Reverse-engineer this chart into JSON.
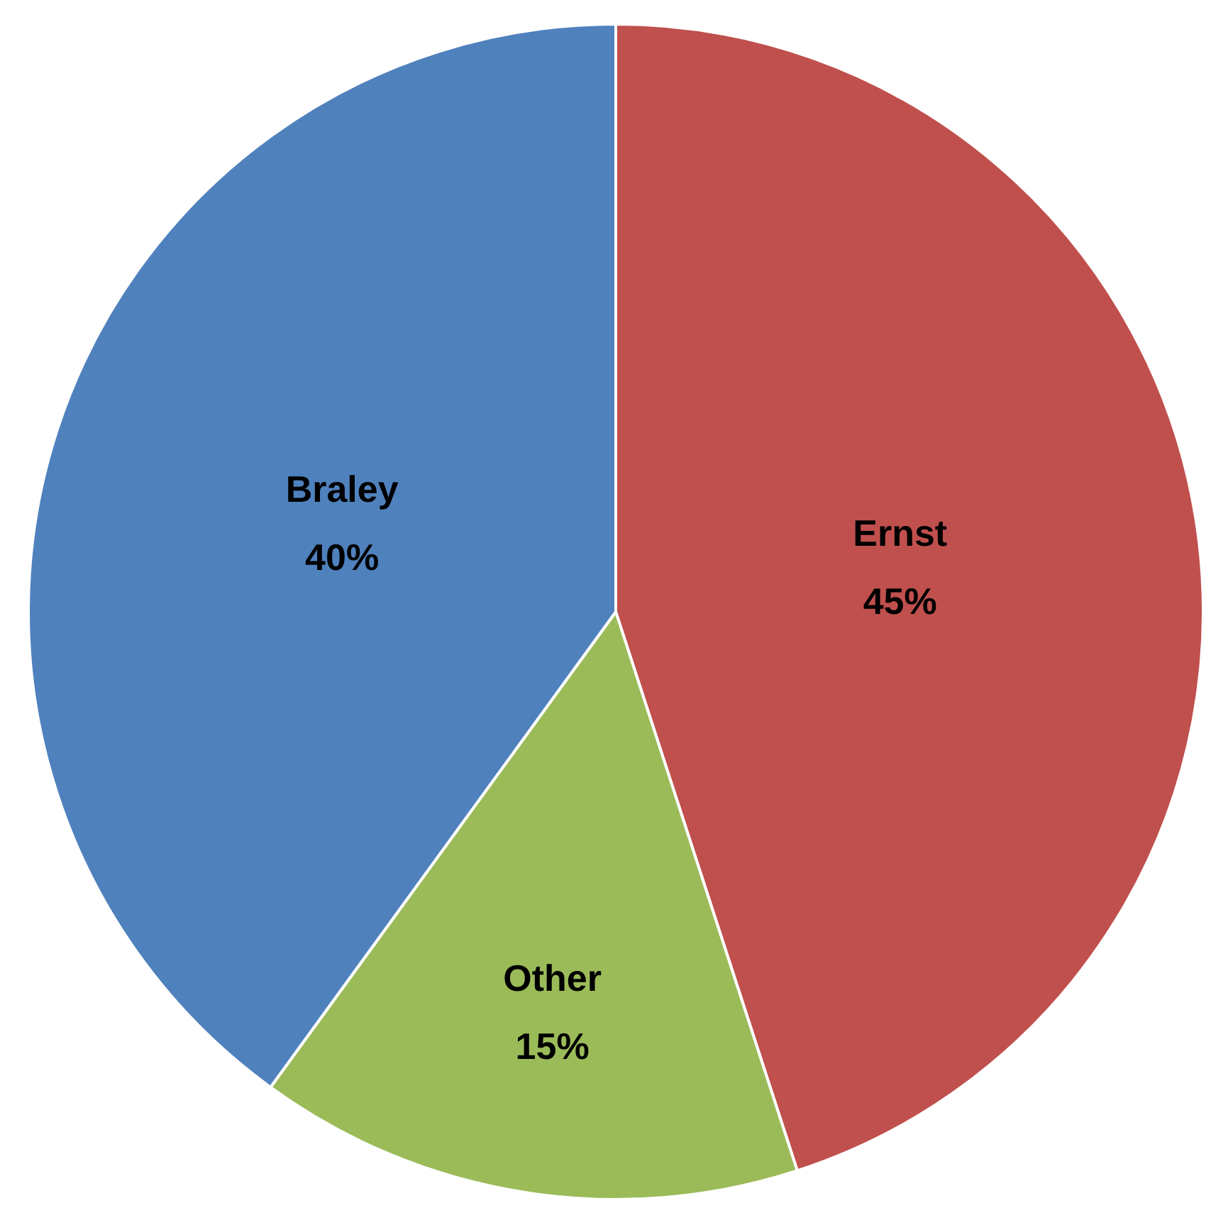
{
  "chart_data": {
    "type": "pie",
    "categories": [
      "Ernst",
      "Other",
      "Braley"
    ],
    "values": [
      45,
      15,
      40
    ],
    "colors": [
      "#c0504d",
      "#9bbb59",
      "#4f81bd"
    ],
    "value_labels": [
      "45%",
      "15%",
      "40%"
    ]
  }
}
